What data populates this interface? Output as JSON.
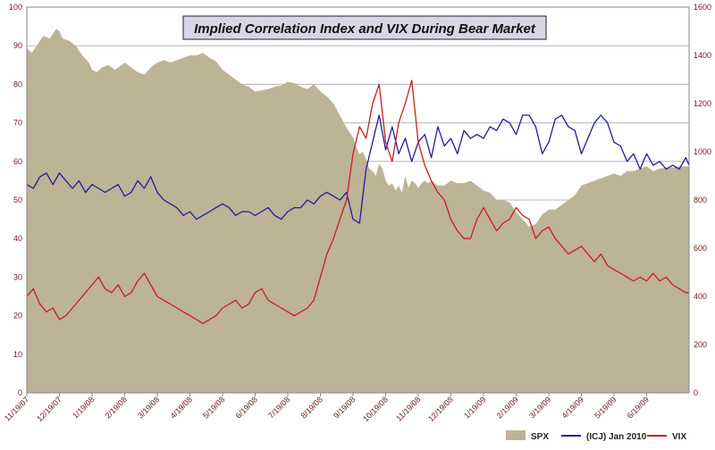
{
  "chart_data": {
    "type": "area",
    "title": "Implied Correlation Index and VIX During Bear Market",
    "xlabel": "",
    "ylabel": "",
    "grid": true,
    "legend_placement": "bottom-right",
    "ylim": [
      0,
      100
    ],
    "y2lim": [
      0,
      1600
    ],
    "yticks": [
      "0",
      "10",
      "20",
      "30",
      "40",
      "50",
      "60",
      "70",
      "80",
      "90",
      "100"
    ],
    "y2ticks": [
      "0",
      "200",
      "400",
      "600",
      "800",
      "1000",
      "1200",
      "1400",
      "1600"
    ],
    "xticks": [
      "11/19/07",
      "12/19/07",
      "1/19/08",
      "2/19/08",
      "3/19/08",
      "4/19/08",
      "5/19/08",
      "6/19/08",
      "7/19/08",
      "8/19/08",
      "9/19/08",
      "10/19/08",
      "11/19/08",
      "12/19/08",
      "1/19/09",
      "2/19/09",
      "3/19/09",
      "4/19/09",
      "5/19/09",
      "6/19/09"
    ],
    "x_range": [
      0,
      20.3
    ],
    "colors": {
      "spx": "#bdb395",
      "icj": "#1e1e9c",
      "vix": "#c81e1e",
      "grid": "#b5b5b5",
      "title_bg": "#d6d6e6"
    },
    "series": [
      {
        "name": "SPX",
        "axis": "right",
        "style": "area",
        "x": [
          0,
          0.15,
          0.3,
          0.5,
          0.7,
          0.9,
          1.0,
          1.1,
          1.3,
          1.5,
          1.7,
          1.9,
          2.0,
          2.15,
          2.3,
          2.5,
          2.7,
          3.0,
          3.2,
          3.4,
          3.6,
          3.8,
          4.0,
          4.2,
          4.4,
          4.6,
          4.8,
          5.0,
          5.2,
          5.4,
          5.6,
          5.8,
          6.0,
          6.2,
          6.4,
          6.6,
          6.8,
          7.0,
          7.2,
          7.4,
          7.6,
          7.8,
          8.0,
          8.2,
          8.4,
          8.6,
          8.8,
          9.0,
          9.2,
          9.4,
          9.6,
          9.8,
          10.0,
          10.1,
          10.2,
          10.3,
          10.4,
          10.5,
          10.6,
          10.7,
          10.8,
          10.9,
          11.0,
          11.1,
          11.2,
          11.3,
          11.4,
          11.5,
          11.6,
          11.7,
          11.8,
          11.9,
          12.0,
          12.1,
          12.2,
          12.3,
          12.4,
          12.6,
          12.8,
          13.0,
          13.2,
          13.4,
          13.6,
          13.8,
          14.0,
          14.2,
          14.4,
          14.6,
          14.8,
          15.0,
          15.2,
          15.4,
          15.6,
          15.8,
          16.0,
          16.2,
          16.4,
          16.6,
          16.8,
          17.0,
          17.2,
          17.4,
          17.6,
          17.8,
          18.0,
          18.2,
          18.4,
          18.6,
          18.8,
          19.0,
          19.2,
          19.4,
          19.6,
          19.8,
          20.0,
          20.2,
          20.3
        ],
        "values": [
          1430,
          1410,
          1440,
          1480,
          1470,
          1510,
          1500,
          1470,
          1460,
          1440,
          1400,
          1370,
          1340,
          1330,
          1350,
          1360,
          1340,
          1370,
          1350,
          1330,
          1320,
          1350,
          1370,
          1380,
          1370,
          1380,
          1390,
          1400,
          1400,
          1410,
          1390,
          1375,
          1340,
          1320,
          1300,
          1280,
          1270,
          1250,
          1255,
          1260,
          1270,
          1275,
          1290,
          1285,
          1270,
          1260,
          1280,
          1250,
          1230,
          1200,
          1150,
          1100,
          1060,
          1020,
          990,
          1000,
          970,
          930,
          920,
          900,
          950,
          930,
          880,
          860,
          870,
          840,
          860,
          830,
          900,
          850,
          880,
          870,
          850,
          870,
          880,
          870,
          880,
          860,
          860,
          880,
          870,
          870,
          880,
          860,
          840,
          830,
          800,
          800,
          790,
          750,
          720,
          690,
          700,
          740,
          760,
          760,
          780,
          800,
          820,
          860,
          870,
          880,
          890,
          900,
          910,
          900,
          920,
          920,
          930,
          940,
          920,
          930,
          935,
          935,
          940,
          940,
          940
        ]
      },
      {
        "name": "(ICJ) Jan 2010",
        "axis": "left",
        "style": "line",
        "x": [
          0,
          0.2,
          0.4,
          0.6,
          0.8,
          1.0,
          1.2,
          1.4,
          1.6,
          1.8,
          2.0,
          2.2,
          2.4,
          2.6,
          2.8,
          3.0,
          3.2,
          3.4,
          3.6,
          3.8,
          4.0,
          4.2,
          4.4,
          4.6,
          4.8,
          5.0,
          5.2,
          5.4,
          5.6,
          5.8,
          6.0,
          6.2,
          6.4,
          6.6,
          6.8,
          7.0,
          7.2,
          7.4,
          7.6,
          7.8,
          8.0,
          8.2,
          8.4,
          8.6,
          8.8,
          9.0,
          9.2,
          9.4,
          9.6,
          9.8,
          10.0,
          10.2,
          10.4,
          10.6,
          10.8,
          11.0,
          11.2,
          11.4,
          11.6,
          11.8,
          12.0,
          12.2,
          12.4,
          12.6,
          12.8,
          13.0,
          13.2,
          13.4,
          13.6,
          13.8,
          14.0,
          14.2,
          14.4,
          14.6,
          14.8,
          15.0,
          15.2,
          15.4,
          15.6,
          15.8,
          16.0,
          16.2,
          16.4,
          16.6,
          16.8,
          17.0,
          17.2,
          17.4,
          17.6,
          17.8,
          18.0,
          18.2,
          18.4,
          18.6,
          18.8,
          19.0,
          19.2,
          19.4,
          19.6,
          19.8,
          20.0,
          20.2,
          20.3
        ],
        "values": [
          54,
          53,
          56,
          57,
          54,
          57,
          55,
          53,
          55,
          52,
          54,
          53,
          52,
          53,
          54,
          51,
          52,
          55,
          53,
          56,
          52,
          50,
          49,
          48,
          46,
          47,
          45,
          46,
          47,
          48,
          49,
          48,
          46,
          47,
          47,
          46,
          47,
          48,
          46,
          45,
          47,
          48,
          48,
          50,
          49,
          51,
          52,
          51,
          50,
          52,
          45,
          44,
          58,
          65,
          72,
          63,
          69,
          62,
          66,
          60,
          65,
          67,
          61,
          69,
          64,
          66,
          62,
          68,
          66,
          67,
          66,
          69,
          68,
          71,
          70,
          67,
          72,
          72,
          69,
          62,
          65,
          71,
          72,
          69,
          68,
          62,
          66,
          70,
          72,
          70,
          65,
          64,
          60,
          62,
          58,
          62,
          59,
          60,
          58,
          59,
          58,
          61,
          59
        ]
      },
      {
        "name": "VIX",
        "axis": "left",
        "style": "line",
        "x": [
          0,
          0.2,
          0.4,
          0.6,
          0.8,
          1.0,
          1.2,
          1.4,
          1.6,
          1.8,
          2.0,
          2.2,
          2.4,
          2.6,
          2.8,
          3.0,
          3.2,
          3.4,
          3.6,
          3.8,
          4.0,
          4.2,
          4.4,
          4.6,
          4.8,
          5.0,
          5.2,
          5.4,
          5.6,
          5.8,
          6.0,
          6.2,
          6.4,
          6.6,
          6.8,
          7.0,
          7.2,
          7.4,
          7.6,
          7.8,
          8.0,
          8.2,
          8.4,
          8.6,
          8.8,
          9.0,
          9.2,
          9.4,
          9.6,
          9.8,
          10.0,
          10.2,
          10.4,
          10.6,
          10.8,
          11.0,
          11.2,
          11.4,
          11.6,
          11.8,
          12.0,
          12.2,
          12.4,
          12.6,
          12.8,
          13.0,
          13.2,
          13.4,
          13.6,
          13.8,
          14.0,
          14.2,
          14.4,
          14.6,
          14.8,
          15.0,
          15.2,
          15.4,
          15.6,
          15.8,
          16.0,
          16.2,
          16.4,
          16.6,
          16.8,
          17.0,
          17.2,
          17.4,
          17.6,
          17.8,
          18.0,
          18.2,
          18.4,
          18.6,
          18.8,
          19.0,
          19.2,
          19.4,
          19.6,
          19.8,
          20.0,
          20.2,
          20.3
        ],
        "values": [
          25,
          27,
          23,
          21,
          22,
          19,
          20,
          22,
          24,
          26,
          28,
          30,
          27,
          26,
          28,
          25,
          26,
          29,
          31,
          28,
          25,
          24,
          23,
          22,
          21,
          20,
          19,
          18,
          19,
          20,
          22,
          23,
          24,
          22,
          23,
          26,
          27,
          24,
          23,
          22,
          21,
          20,
          21,
          22,
          24,
          30,
          36,
          40,
          45,
          50,
          62,
          69,
          66,
          75,
          80,
          65,
          60,
          70,
          75,
          81,
          65,
          59,
          55,
          52,
          50,
          45,
          42,
          40,
          40,
          45,
          48,
          45,
          42,
          44,
          45,
          48,
          46,
          45,
          40,
          42,
          43,
          40,
          38,
          36,
          37,
          38,
          36,
          34,
          36,
          33,
          32,
          31,
          30,
          29,
          30,
          29,
          31,
          29,
          30,
          28,
          27,
          26,
          26
        ]
      }
    ]
  }
}
